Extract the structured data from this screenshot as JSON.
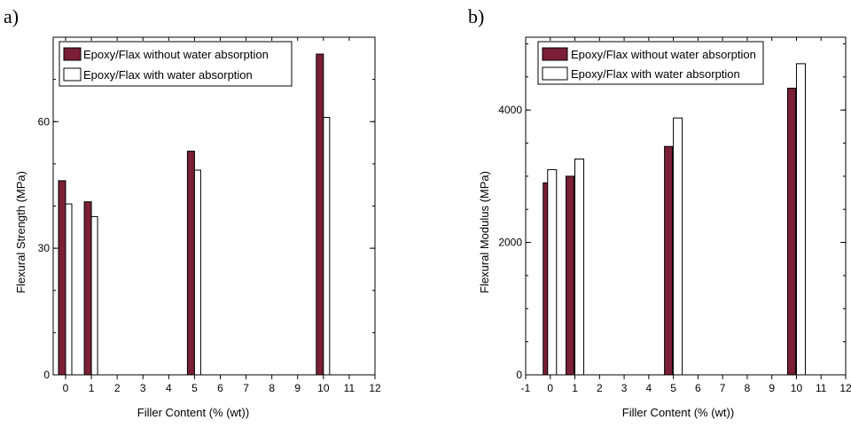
{
  "chart_data": [
    {
      "type": "bar",
      "panel_label": "a)",
      "xlabel": "Filler Content (% (wt))",
      "ylabel": "Flexural Strength (MPa)",
      "x_ticks": [
        "0",
        "1",
        "2",
        "3",
        "4",
        "5",
        "6",
        "7",
        "8",
        "9",
        "10",
        "11",
        "12"
      ],
      "y_ticks": [
        "0",
        "30",
        "60"
      ],
      "xlim": [
        -0.5,
        12
      ],
      "ylim": [
        0,
        80
      ],
      "legend_position": "top-left",
      "x": [
        0,
        1,
        5,
        10
      ],
      "series": [
        {
          "name": "Epoxy/Flax without water absorption",
          "color": "#7a1f35",
          "values": [
            46,
            41,
            53,
            76
          ]
        },
        {
          "name": "Epoxy/Flax with water absorption",
          "color": "#ffffff",
          "values": [
            40.5,
            37.5,
            48.5,
            61
          ]
        }
      ]
    },
    {
      "type": "bar",
      "panel_label": "b)",
      "xlabel": "Filler Content (% (wt))",
      "ylabel": "Flexural Modulus (MPa)",
      "x_ticks": [
        "-1",
        "0",
        "1",
        "2",
        "3",
        "4",
        "5",
        "6",
        "7",
        "8",
        "9",
        "10",
        "11",
        "12"
      ],
      "y_ticks": [
        "0",
        "2000",
        "4000"
      ],
      "xlim": [
        -1,
        12
      ],
      "ylim": [
        0,
        5100
      ],
      "legend_position": "top-left",
      "x": [
        0,
        1,
        5,
        10
      ],
      "series": [
        {
          "name": "Epoxy/Flax without water absorption",
          "color": "#7a1f35",
          "values": [
            2900,
            3000,
            3450,
            4330
          ]
        },
        {
          "name": "Epoxy/Flax with water absorption",
          "color": "#ffffff",
          "values": [
            3100,
            3260,
            3880,
            4700
          ]
        }
      ]
    }
  ]
}
